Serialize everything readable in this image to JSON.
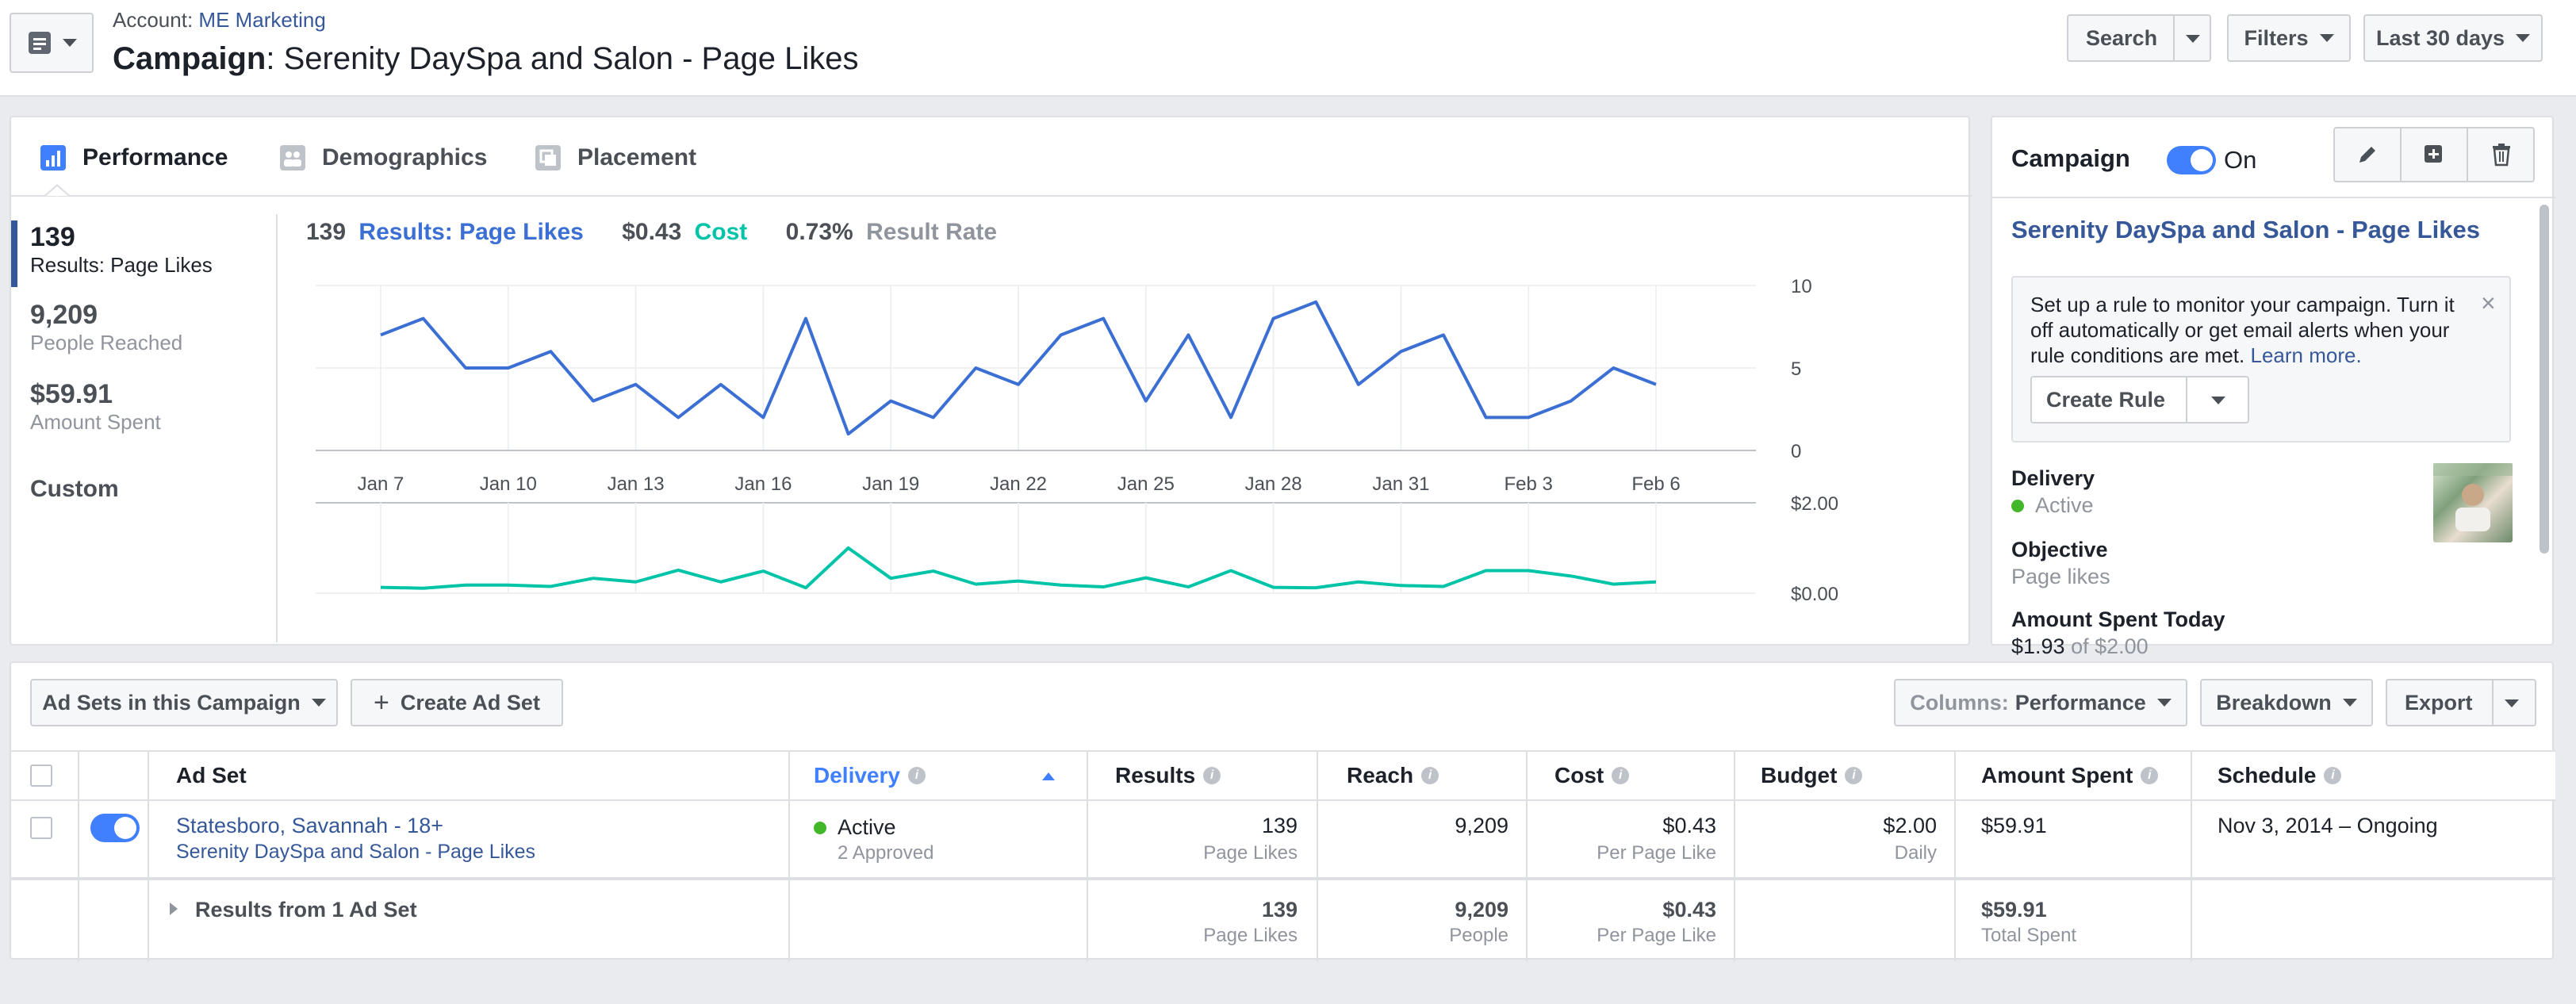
{
  "header": {
    "account_label": "Account:",
    "account_name": "ME Marketing",
    "campaign_label": "Campaign",
    "campaign_name": ": Serenity DaySpa and Salon - Page Likes",
    "search_button": "Search",
    "filters_button": "Filters",
    "date_range": "Last 30 days"
  },
  "tabs": [
    {
      "label": "Performance",
      "icon": "bar-chart-icon",
      "active": true
    },
    {
      "label": "Demographics",
      "icon": "people-icon",
      "active": false
    },
    {
      "label": "Placement",
      "icon": "placement-icon",
      "active": false
    }
  ],
  "metrics": [
    {
      "value": "139",
      "label": "Results: Page Likes",
      "selected": true
    },
    {
      "value": "9,209",
      "label": "People Reached"
    },
    {
      "value": "$59.91",
      "label": "Amount Spent"
    }
  ],
  "custom_label": "Custom",
  "summary": {
    "results_value": "139",
    "results_label": "Results: Page Likes",
    "cost_value": "$0.43",
    "cost_label": "Cost",
    "rate_value": "0.73%",
    "rate_label": "Result Rate"
  },
  "chart_data": [
    {
      "type": "line",
      "series": [
        {
          "name": "Results: Page Likes",
          "color": "#3b6fd4",
          "values": [
            7,
            8,
            5,
            5,
            6,
            3,
            4,
            2,
            4,
            2,
            8,
            1,
            3,
            2,
            5,
            4,
            7,
            8,
            3,
            7,
            2,
            8,
            9,
            4,
            6,
            7,
            2,
            2,
            3,
            5,
            4
          ]
        }
      ],
      "x_ticks": [
        "Jan 7",
        "Jan 10",
        "Jan 13",
        "Jan 16",
        "Jan 19",
        "Jan 22",
        "Jan 25",
        "Jan 28",
        "Jan 31",
        "Feb 3",
        "Feb 6"
      ],
      "y_ticks": [
        "10",
        "5",
        "0"
      ],
      "ylim": [
        0,
        10
      ]
    },
    {
      "type": "line",
      "series": [
        {
          "name": "Cost",
          "color": "#00c4a7",
          "values": [
            0.13,
            0.11,
            0.18,
            0.18,
            0.15,
            0.33,
            0.25,
            0.51,
            0.25,
            0.49,
            0.12,
            1.0,
            0.33,
            0.49,
            0.2,
            0.27,
            0.18,
            0.14,
            0.34,
            0.14,
            0.5,
            0.13,
            0.12,
            0.25,
            0.17,
            0.15,
            0.5,
            0.5,
            0.38,
            0.2,
            0.25
          ]
        }
      ],
      "y_ticks": [
        "$2.00",
        "$0.00"
      ],
      "ylim": [
        0,
        2.0
      ]
    }
  ],
  "campaign_panel": {
    "title": "Campaign",
    "status": "On",
    "campaign_name": "Serenity DaySpa and Salon - Page Likes",
    "rule_text": "Set up a rule to monitor your campaign. Turn it off automatically or get email alerts when your rule conditions are met.",
    "learn_more": "Learn more.",
    "create_rule": "Create Rule",
    "delivery_label": "Delivery",
    "delivery_value": "Active",
    "objective_label": "Objective",
    "objective_value": "Page likes",
    "spent_today_label": "Amount Spent Today",
    "spent_today_value": "$1.93",
    "spent_today_of": "of $2.00"
  },
  "table": {
    "adsets_dropdown": "Ad Sets in this Campaign",
    "create_adset": "Create Ad Set",
    "columns_prefix": "Columns:",
    "columns_value": "Performance",
    "breakdown": "Breakdown",
    "export": "Export",
    "headers": [
      "Ad Set",
      "Delivery",
      "Results",
      "Reach",
      "Cost",
      "Budget",
      "Amount Spent",
      "Schedule"
    ],
    "row": {
      "name": "Statesboro, Savannah - 18+",
      "campaign": "Serenity DaySpa and Salon - Page Likes",
      "delivery": "Active",
      "delivery_sub": "2 Approved",
      "results": "139",
      "results_sub": "Page Likes",
      "reach": "9,209",
      "cost": "$0.43",
      "cost_sub": "Per Page Like",
      "budget": "$2.00",
      "budget_sub": "Daily",
      "amount_spent": "$59.91",
      "schedule": "Nov 3, 2014 – Ongoing"
    },
    "totals": {
      "label": "Results from 1 Ad Set",
      "results": "139",
      "results_sub": "Page Likes",
      "reach": "9,209",
      "reach_sub": "People",
      "cost": "$0.43",
      "cost_sub": "Per Page Like",
      "amount_spent": "$59.91",
      "amount_spent_sub": "Total Spent"
    }
  }
}
